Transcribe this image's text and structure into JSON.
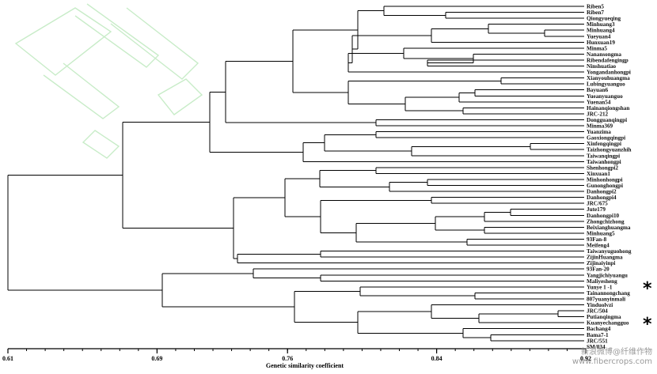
{
  "figure": {
    "axis_title": "Genetic similarity coefficient",
    "axis_ticks": [
      "0.61",
      "0.69",
      "0.76",
      "0.84",
      "0.92"
    ],
    "asterisk": "*",
    "watermark_line1": "新浪微博@纤维作物",
    "watermark_line2": "www.fibercrops.com"
  },
  "leaves": [
    "Riben5",
    "Riben7",
    "Qiongyueqing",
    "Minhuang3",
    "Minhuang4",
    "Yueyuan4",
    "Hunxuan19",
    "Minma5",
    "Nanansongma",
    "Ribendafengingp",
    "Ninshuatiao",
    "Yongandanhongpi",
    "Xianyouhuangma",
    "Lubingyuanguo",
    "Bayuan6",
    "Yueanyuanguo",
    "Yuenan54",
    "Hainanqiongshan",
    "JRC-212",
    "Dongguanqingpi",
    "Minma369",
    "Yuanzima",
    "Gaoxiongqingpi",
    "Xinfengqingpi",
    "Taizhongyuanzhih",
    "Taiwanqingpi",
    "Taiwanhongpi",
    "Shenhongpi2",
    "Xinxuan1",
    "Minhonhongpi",
    "Gunonghongpi",
    "Danhongpi2",
    "Danhongpi4",
    "JRC/675",
    "Jute179",
    "Danhongpi10",
    "Zhongchizhong",
    "Beixianghuangma",
    "Minhuang5",
    "93Fan-8",
    "Meifeng4",
    "Taiwanyuguohong",
    "ZijinHuangma",
    "Zijinaiyinpi",
    "93Fan-20",
    "Yangjichiyuangu",
    "Maliyesheng",
    "Yunye 1 -1",
    "Tainannongchang",
    "807yuanyinmali",
    "Yinduolvzi",
    "JRC/504",
    "Putianqingma",
    "Kuanyechangguo",
    "Bachang4",
    "Bama7-1",
    "JRC/551",
    "SM/034"
  ]
}
